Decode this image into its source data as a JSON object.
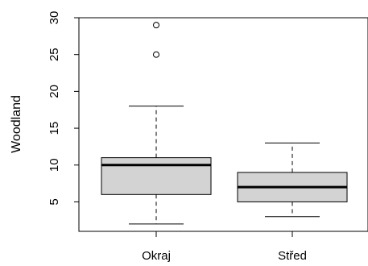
{
  "chart_data": {
    "type": "box",
    "title": "",
    "xlabel": "",
    "ylabel": "Woodland",
    "categories": [
      "Okraj",
      "Střed"
    ],
    "ylim": [
      1,
      30
    ],
    "yticks": [
      5,
      10,
      15,
      20,
      25,
      30
    ],
    "grid": false,
    "boxes": [
      {
        "category": "Okraj",
        "whisker_low": 2,
        "q1": 6,
        "median": 10,
        "q3": 11,
        "whisker_high": 18,
        "outliers": [
          25,
          29
        ]
      },
      {
        "category": "Střed",
        "whisker_low": 3,
        "q1": 5,
        "median": 7,
        "q3": 9,
        "whisker_high": 13,
        "outliers": []
      }
    ],
    "colors": {
      "box_fill": "#d3d3d3",
      "line": "#000000"
    }
  }
}
